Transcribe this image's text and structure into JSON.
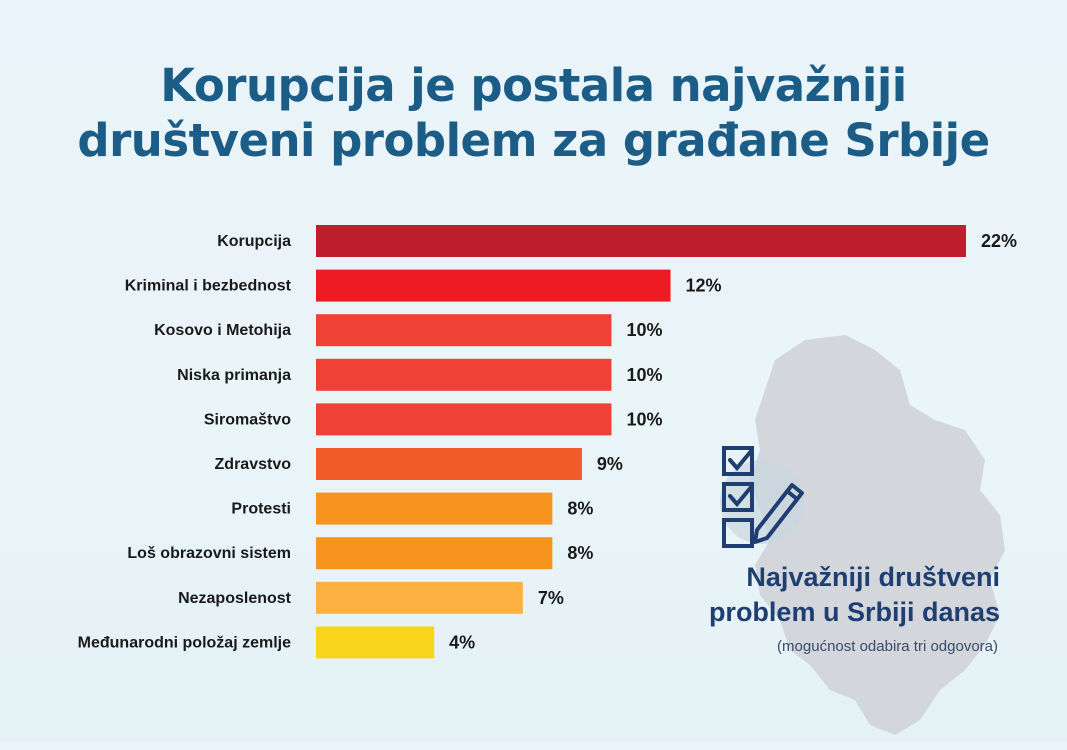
{
  "title": {
    "line1": "Korupcija je postala najvažniji",
    "line2": "društveni problem za građane Srbije"
  },
  "caption": {
    "line1": "Najvažniji društveni",
    "line2": "problem u Srbiji danas",
    "note": "(mogućnost odabira tri odgovora)"
  },
  "icons": {
    "checklist": "checklist-pencil-icon",
    "map": "serbia-map-silhouette"
  },
  "colors": {
    "title": "#1b5d86",
    "caption": "#1f3f73",
    "map": "#d3d7dc"
  },
  "chart_data": {
    "type": "bar",
    "orientation": "horizontal",
    "title": "Korupcija je postala najvažniji društveni problem za građane Srbije",
    "categories": [
      "Korupcija",
      "Kriminal i bezbednost",
      "Kosovo i Metohija",
      "Niska primanja",
      "Siromaštvo",
      "Zdravstvo",
      "Protesti",
      "Loš obrazovni sistem",
      "Nezaposlenost",
      "Međunarodni položaj zemlje"
    ],
    "values": [
      22,
      12,
      10,
      10,
      10,
      9,
      8,
      8,
      7,
      4
    ],
    "labels": [
      "22%",
      "12%",
      "10%",
      "10%",
      "10%",
      "9%",
      "8%",
      "8%",
      "7%",
      "4%"
    ],
    "bar_colors": [
      "#be1e2d",
      "#ed1c24",
      "#ef4136",
      "#ef4136",
      "#ef4136",
      "#f15a29",
      "#f7941d",
      "#f7941d",
      "#fbb040",
      "#f9d41c"
    ],
    "unit": "%",
    "xlim": [
      0,
      22
    ]
  }
}
